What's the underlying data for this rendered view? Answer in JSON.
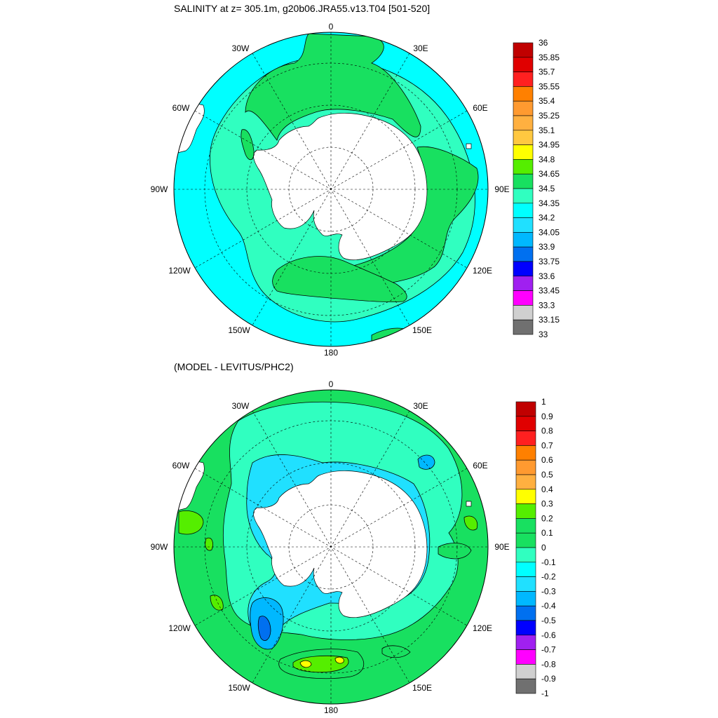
{
  "panels": [
    {
      "title": "SALINITY at z= 305.1m, g20b06.JRA55.v13.T04 [501-520]",
      "lon_labels": [
        "0",
        "30E",
        "60E",
        "90E",
        "120E",
        "150E",
        "180",
        "150W",
        "120W",
        "90W",
        "60W",
        "30W"
      ],
      "colorbar": {
        "labels": [
          "36",
          "35.85",
          "35.7",
          "35.55",
          "35.4",
          "35.25",
          "35.1",
          "34.95",
          "34.8",
          "34.65",
          "34.5",
          "34.35",
          "34.2",
          "34.05",
          "33.9",
          "33.75",
          "33.6",
          "33.45",
          "33.3",
          "33.15",
          "33"
        ],
        "colors": [
          "#c00000",
          "#e00000",
          "#ff2020",
          "#ff8000",
          "#ff9a30",
          "#ffb040",
          "#ffc840",
          "#ffff00",
          "#55ee00",
          "#18e060",
          "#30ffc0",
          "#00ffff",
          "#20e0ff",
          "#00b8ff",
          "#0070f0",
          "#0000ff",
          "#a020f0",
          "#ff00ff",
          "#d0d0d0",
          "#707070"
        ]
      },
      "fields": [
        {
          "name": "background",
          "color": "#00ffff"
        },
        {
          "name": "green",
          "color": "#18e060"
        },
        {
          "name": "teal",
          "color": "#30ffc0"
        }
      ]
    },
    {
      "title": "(MODEL - LEVITUS/PHC2)",
      "lon_labels": [
        "0",
        "30E",
        "60E",
        "90E",
        "120E",
        "150E",
        "180",
        "150W",
        "120W",
        "90W",
        "60W",
        "30W"
      ],
      "colorbar": {
        "labels": [
          "1",
          "0.9",
          "0.8",
          "0.7",
          "0.6",
          "0.5",
          "0.4",
          "0.3",
          "0.2",
          "0.1",
          "0",
          "-0.1",
          "-0.2",
          "-0.3",
          "-0.4",
          "-0.5",
          "-0.6",
          "-0.7",
          "-0.8",
          "-0.9",
          "-1"
        ],
        "colors": [
          "#c00000",
          "#e00000",
          "#ff2020",
          "#ff8000",
          "#ff9a30",
          "#ffb040",
          "#ffff00",
          "#55ee00",
          "#18e060",
          "#18e060",
          "#30ffc0",
          "#00ffff",
          "#20e0ff",
          "#00b8ff",
          "#0070f0",
          "#0000ff",
          "#a020f0",
          "#ff00ff",
          "#d0d0d0",
          "#707070"
        ]
      },
      "fields": [
        {
          "name": "background",
          "color": "#18e060"
        },
        {
          "name": "teal",
          "color": "#30ffc0"
        },
        {
          "name": "cyan",
          "color": "#20e0ff"
        },
        {
          "name": "blue",
          "color": "#0070f0"
        },
        {
          "name": "yellow",
          "color": "#ffff00"
        }
      ]
    }
  ]
}
